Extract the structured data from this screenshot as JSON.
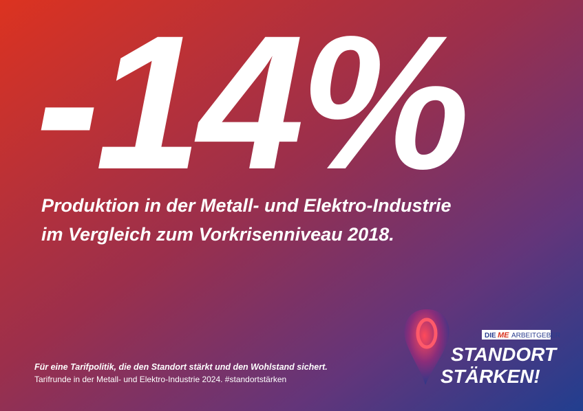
{
  "headline": "-14%",
  "subtitle": {
    "lines": [
      "Produktion in der Metall- und Elektro-Industrie",
      "im Vergleich zum Vorkrisenniveau 2018."
    ]
  },
  "footer": {
    "claim": "Für eine Tarifpolitik, die den Standort stärkt und den Wohlstand sichert.",
    "info": "Tarifrunde in der Metall- und Elektro-Industrie 2024. #standortstärken"
  },
  "logo": {
    "prefix": "DIE",
    "brand": "ME",
    "suffix": "ARBEITGEBER",
    "lines": [
      "STANDORT",
      "STÄRKEN!"
    ]
  }
}
